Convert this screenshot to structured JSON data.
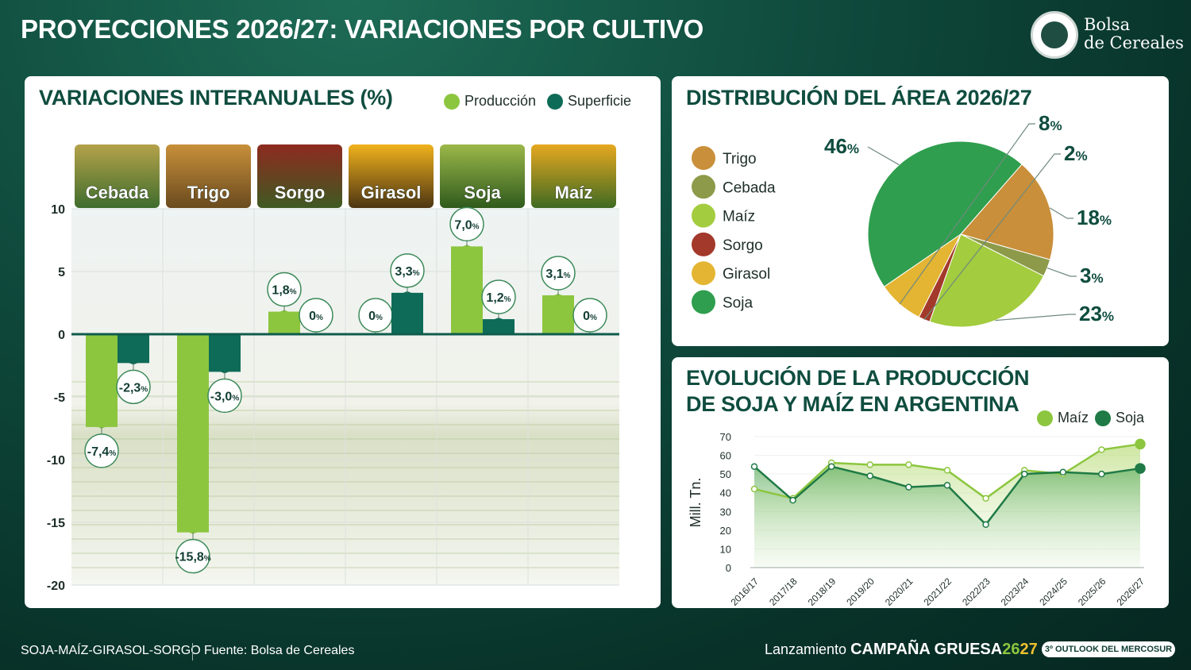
{
  "header": {
    "title": "PROYECCIONES 2026/27: VARIACIONES POR CULTIVO",
    "brand_line1": "Bolsa",
    "brand_line2": "de Cereales"
  },
  "colors": {
    "produccion": "#8cc63f",
    "superficie": "#0e6b58",
    "dark_green": "#0f4d3f"
  },
  "icons": [
    "logo-seal-icon"
  ],
  "bar_panel": {
    "title": "VARIACIONES INTERANUALES (%)",
    "legend": [
      "Producción",
      "Superficie"
    ]
  },
  "pie_panel": {
    "title": "DISTRIBUCIÓN DEL ÁREA 2026/27"
  },
  "line_panel": {
    "title_line1": "EVOLUCIÓN DE LA PRODUCCIÓN",
    "title_line2": "DE SOJA Y MAÍZ EN ARGENTINA",
    "legend": [
      "Maíz",
      "Soja"
    ]
  },
  "footer": {
    "crops": "SOJA-MAÍZ-GIRASOL-SORGO",
    "source": "Fuente: Bolsa de Cereales",
    "launch_prefix": "Lanzamiento",
    "launch_bold": "CAMPAÑA GRUESA",
    "launch_year_a": "26",
    "launch_year_b": "27",
    "outlook": "3º OUTLOOK DEL MERCOSUR"
  },
  "chart_data": [
    {
      "type": "bar",
      "categories": [
        "Cebada",
        "Trigo",
        "Sorgo",
        "Girasol",
        "Soja",
        "Maíz"
      ],
      "series": [
        {
          "name": "Producción",
          "values": [
            -7.4,
            -15.8,
            1.8,
            0,
            7.0,
            3.1
          ],
          "labels": [
            "-7,4",
            "-15,8",
            "1,8",
            "0",
            "7,0",
            "3,1"
          ]
        },
        {
          "name": "Superficie",
          "values": [
            -2.3,
            -3.0,
            0,
            3.3,
            1.2,
            0
          ],
          "labels": [
            "-2,3",
            "-3,0",
            "0",
            "3,3",
            "1,2",
            "0"
          ]
        }
      ],
      "yticks": [
        10,
        5,
        0,
        -5,
        -10,
        -15,
        -20
      ],
      "ylim": [
        -20,
        10
      ],
      "title": "VARIACIONES INTERANUALES (%)",
      "unit": "%"
    },
    {
      "type": "pie",
      "categories": [
        "Trigo",
        "Cebada",
        "Maíz",
        "Sorgo",
        "Girasol",
        "Soja"
      ],
      "values": [
        18,
        3,
        23,
        2,
        8,
        46
      ],
      "colors": [
        "#c98f3a",
        "#8c9a4a",
        "#a3cc3e",
        "#a3392a",
        "#e4b532",
        "#2f9e4e"
      ],
      "labels": [
        "18",
        "3",
        "23",
        "2",
        "8",
        "46"
      ],
      "unit": "%",
      "title": "DISTRIBUCIÓN DEL ÁREA 2026/27"
    },
    {
      "type": "line",
      "x": [
        "2016/17",
        "2017/18",
        "2018/19",
        "2019/20",
        "2020/21",
        "2021/22",
        "2022/23",
        "2023/24",
        "2024/25",
        "2025/26",
        "2026/27"
      ],
      "series": [
        {
          "name": "Maíz",
          "values": [
            42,
            37,
            56,
            55,
            55,
            52,
            37,
            52,
            50,
            63,
            66
          ]
        },
        {
          "name": "Soja",
          "values": [
            54,
            36,
            54,
            49,
            43,
            44,
            23,
            50,
            51,
            50,
            53
          ]
        }
      ],
      "ylabel": "Mill. Tn.",
      "ylim": [
        0,
        70
      ],
      "yticks": [
        70,
        60,
        50,
        40,
        30,
        20,
        10,
        0
      ],
      "title": "EVOLUCIÓN DE LA PRODUCCIÓN DE SOJA Y MAÍZ EN ARGENTINA"
    }
  ]
}
